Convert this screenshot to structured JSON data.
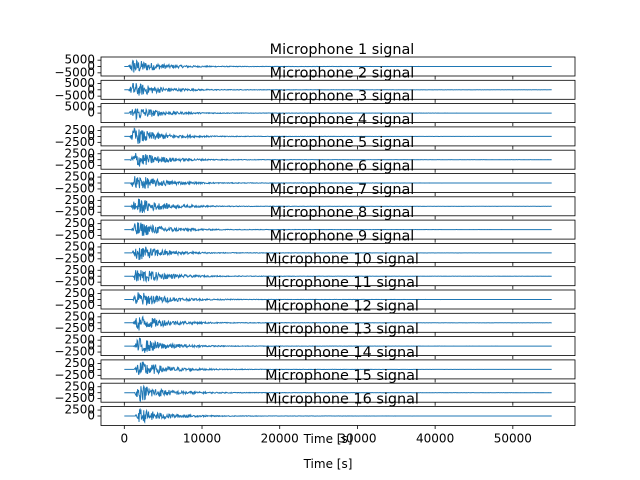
{
  "chart_data": {
    "type": "line",
    "xlabel": "Time [s]",
    "x_ticks": [
      0,
      10000,
      20000,
      30000,
      40000,
      50000
    ],
    "xlim": [
      -3000,
      58000
    ],
    "signal_length": 55000,
    "series_color": "#1f77b4",
    "panels": [
      {
        "title": "Microphone 1 signal",
        "ylim": [
          -7500,
          7500
        ],
        "y_ticks": [
          -5000,
          0,
          5000
        ],
        "y_tick_labels": [
          "−5000",
          "0",
          "5000"
        ],
        "peak_amplitude": 6000
      },
      {
        "title": "Microphone 2 signal",
        "ylim": [
          -7500,
          7500
        ],
        "y_ticks": [
          -5000,
          0,
          5000
        ],
        "y_tick_labels": [
          "−5000",
          "0",
          "5000"
        ],
        "peak_amplitude": 6000
      },
      {
        "title": "Microphone 3 signal",
        "ylim": [
          -7500,
          7500
        ],
        "y_ticks": [
          0,
          5000
        ],
        "y_tick_labels": [
          "0",
          "5000"
        ],
        "peak_amplitude": 5500
      },
      {
        "title": "Microphone 4 signal",
        "ylim": [
          -4000,
          4000
        ],
        "y_ticks": [
          -2500,
          0,
          2500
        ],
        "y_tick_labels": [
          "−2500",
          "0",
          "2500"
        ],
        "peak_amplitude": 3500
      },
      {
        "title": "Microphone 5 signal",
        "ylim": [
          -4000,
          4000
        ],
        "y_ticks": [
          -2500,
          0,
          2500
        ],
        "y_tick_labels": [
          "−2500",
          "0",
          "2500"
        ],
        "peak_amplitude": 3500
      },
      {
        "title": "Microphone 6 signal",
        "ylim": [
          -4000,
          4000
        ],
        "y_ticks": [
          -2500,
          0,
          2500
        ],
        "y_tick_labels": [
          "−2500",
          "0",
          "2500"
        ],
        "peak_amplitude": 3500
      },
      {
        "title": "Microphone 7 signal",
        "ylim": [
          -4000,
          4000
        ],
        "y_ticks": [
          -2500,
          0,
          2500
        ],
        "y_tick_labels": [
          "−2500",
          "0",
          "2500"
        ],
        "peak_amplitude": 3500
      },
      {
        "title": "Microphone 8 signal",
        "ylim": [
          -4000,
          4000
        ],
        "y_ticks": [
          -2500,
          0,
          2500
        ],
        "y_tick_labels": [
          "−2500",
          "0",
          "2500"
        ],
        "peak_amplitude": 3500
      },
      {
        "title": "Microphone 9 signal",
        "ylim": [
          -4000,
          4000
        ],
        "y_ticks": [
          -2500,
          0,
          2500
        ],
        "y_tick_labels": [
          "−2500",
          "0",
          "2500"
        ],
        "peak_amplitude": 3500
      },
      {
        "title": "Microphone 10 signal",
        "ylim": [
          -4000,
          4000
        ],
        "y_ticks": [
          -2500,
          0,
          2500
        ],
        "y_tick_labels": [
          "−2500",
          "0",
          "2500"
        ],
        "peak_amplitude": 3500
      },
      {
        "title": "Microphone 11 signal",
        "ylim": [
          -4000,
          4000
        ],
        "y_ticks": [
          -2500,
          0,
          2500
        ],
        "y_tick_labels": [
          "−2500",
          "0",
          "2500"
        ],
        "peak_amplitude": 3500
      },
      {
        "title": "Microphone 12 signal",
        "ylim": [
          -4000,
          4000
        ],
        "y_ticks": [
          -2500,
          0,
          2500
        ],
        "y_tick_labels": [
          "−2500",
          "0",
          "2500"
        ],
        "peak_amplitude": 3500
      },
      {
        "title": "Microphone 13 signal",
        "ylim": [
          -4000,
          4000
        ],
        "y_ticks": [
          -2500,
          0,
          2500
        ],
        "y_tick_labels": [
          "−2500",
          "0",
          "2500"
        ],
        "peak_amplitude": 3500
      },
      {
        "title": "Microphone 14 signal",
        "ylim": [
          -4000,
          4000
        ],
        "y_ticks": [
          -2500,
          0,
          2500
        ],
        "y_tick_labels": [
          "−2500",
          "0",
          "2500"
        ],
        "peak_amplitude": 3500
      },
      {
        "title": "Microphone 15 signal",
        "ylim": [
          -4000,
          4000
        ],
        "y_ticks": [
          -2500,
          0,
          2500
        ],
        "y_tick_labels": [
          "−2500",
          "0",
          "2500"
        ],
        "peak_amplitude": 3500
      },
      {
        "title": "Microphone 16 signal",
        "ylim": [
          -4000,
          4000
        ],
        "y_ticks": [
          0,
          2500
        ],
        "y_tick_labels": [
          "0",
          "2500"
        ],
        "peak_amplitude": 3000
      }
    ]
  }
}
